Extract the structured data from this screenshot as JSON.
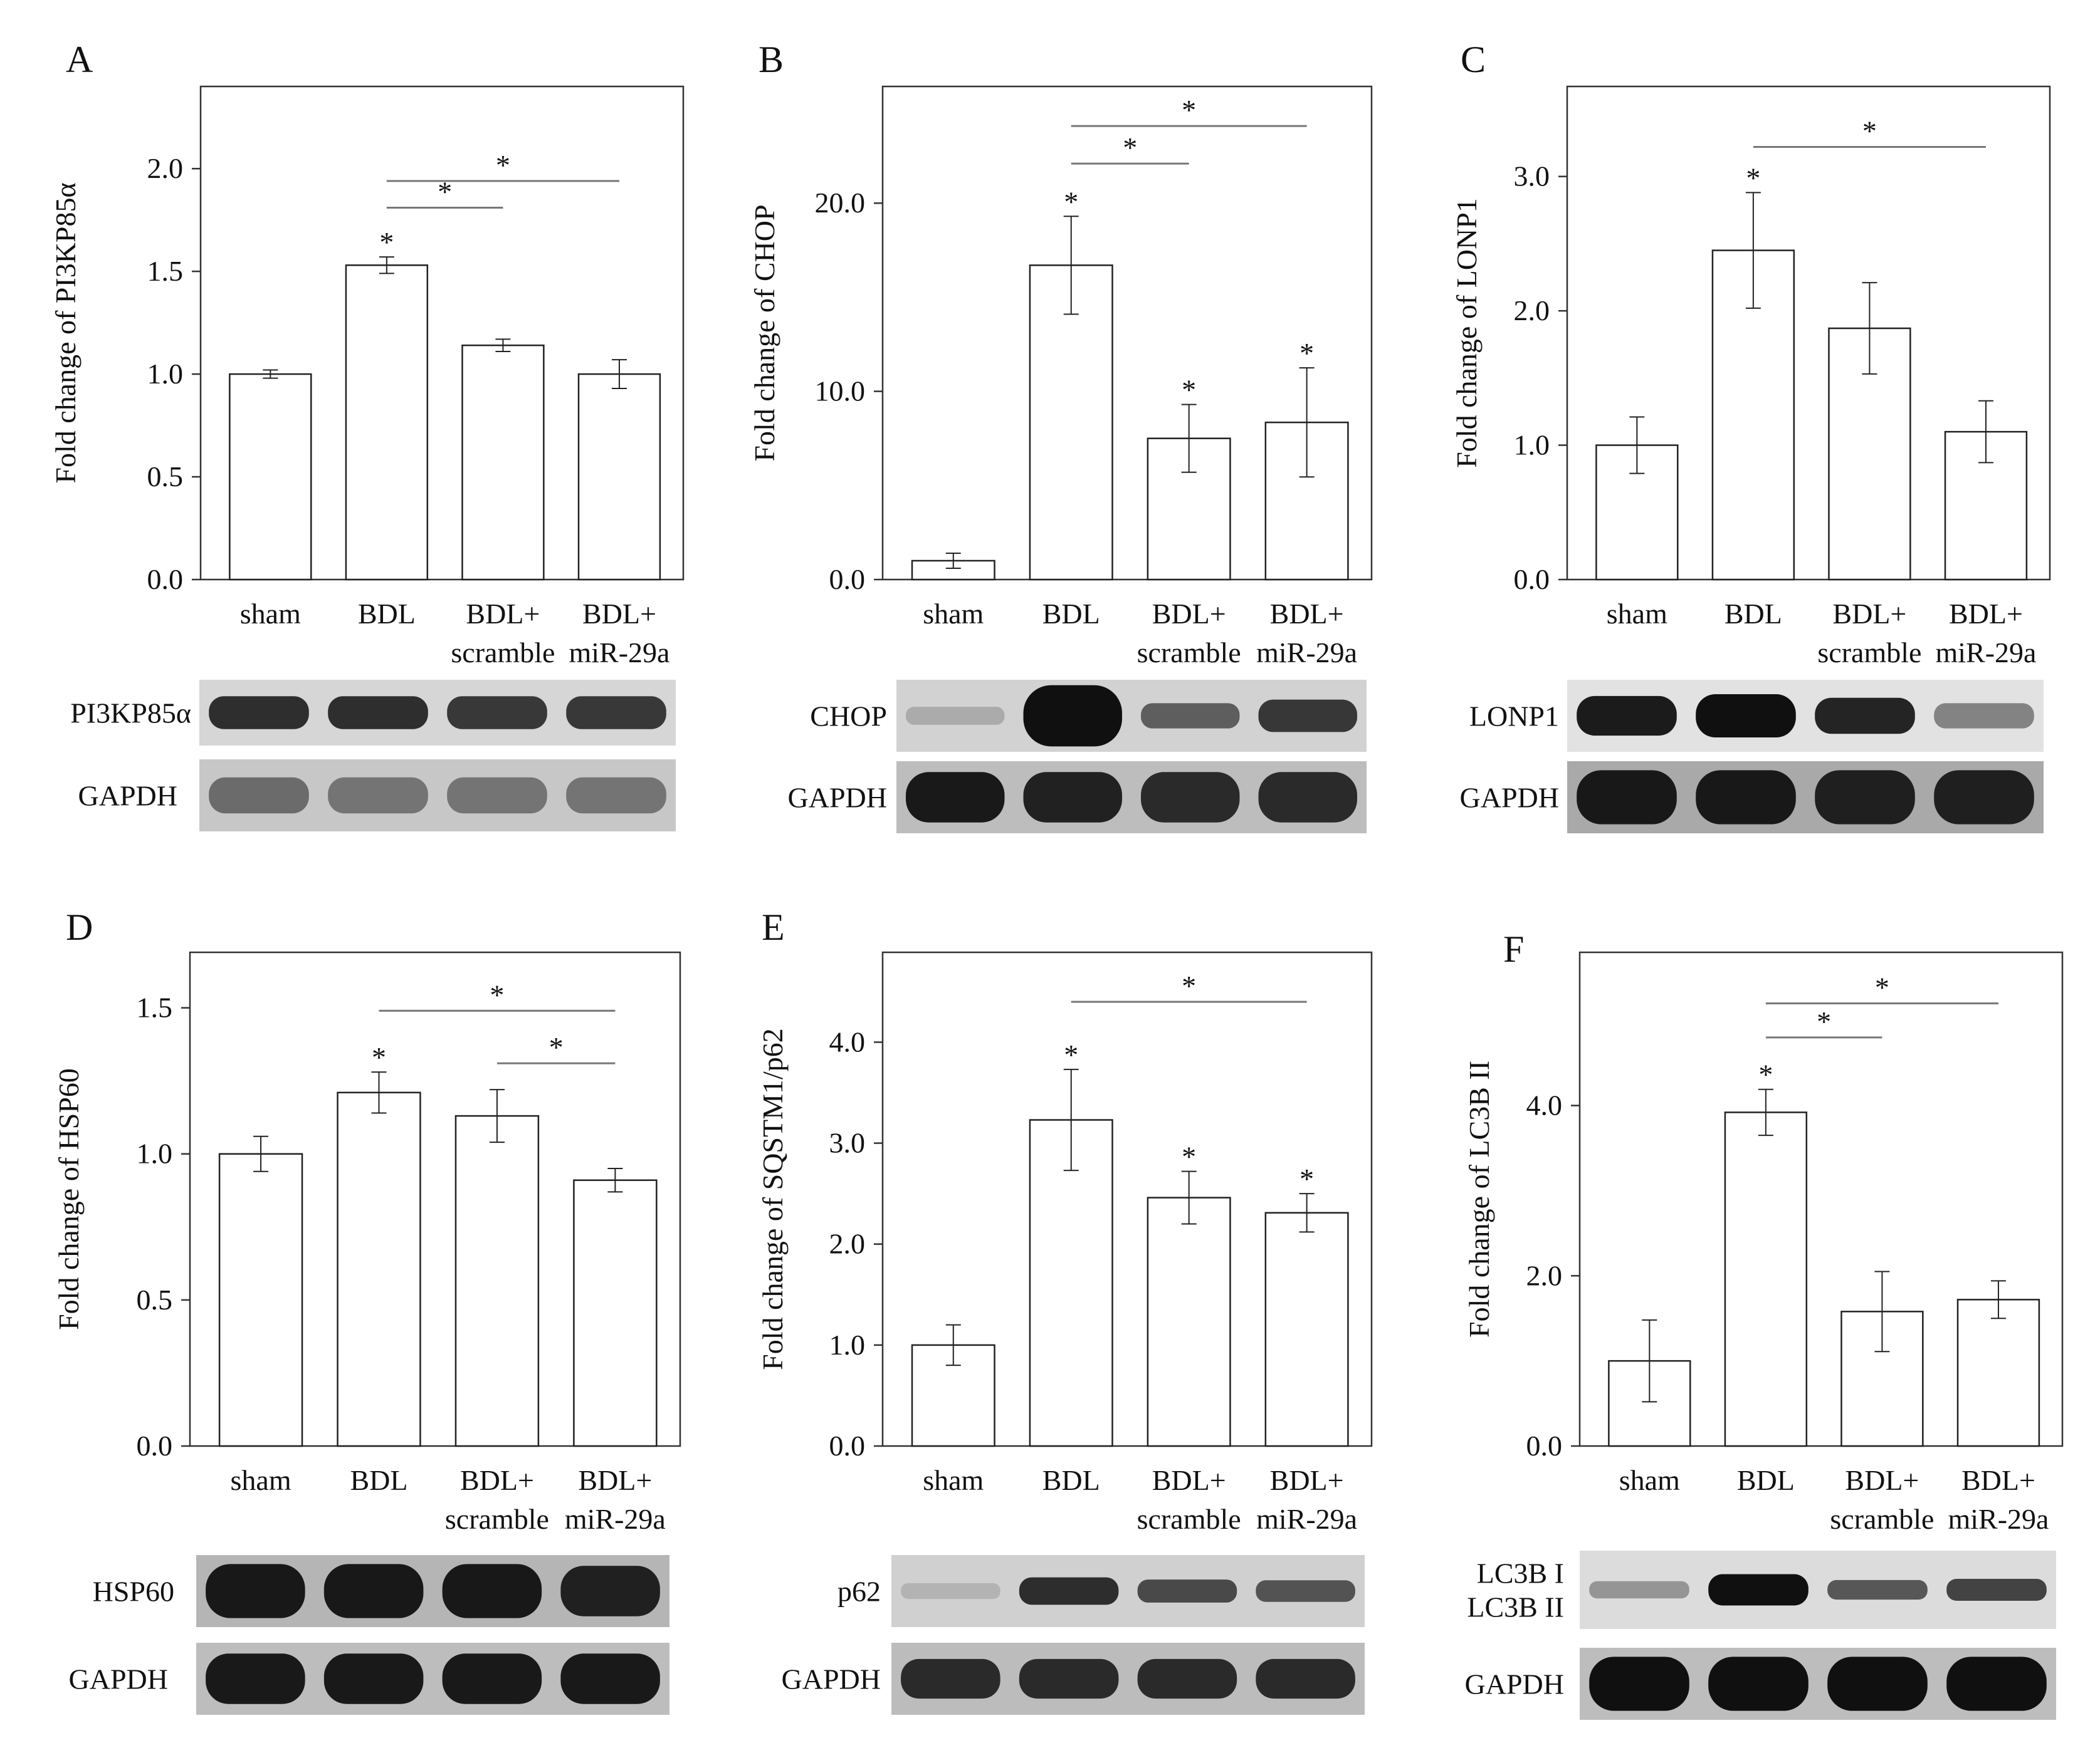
{
  "colors": {
    "axis": "#333333",
    "bar_fill": "#ffffff",
    "bar_stroke": "#222222",
    "sig_line": "#777777",
    "blot_bg": "#d8d8d8",
    "band": "#101010"
  },
  "x_tick_lines": [
    [
      "sham"
    ],
    [
      "BDL"
    ],
    [
      "BDL+",
      "scramble"
    ],
    [
      "BDL+",
      "miR-29a"
    ]
  ],
  "chart_data": [
    {
      "type": "bar",
      "panel_label": "A",
      "ylabel": "Fold change of  PI3KP85α",
      "categories": [
        "sham",
        "BDL",
        "BDL+ scramble",
        "BDL+ miR-29a"
      ],
      "values": [
        1.0,
        1.53,
        1.14,
        1.0
      ],
      "errors": [
        0.02,
        0.04,
        0.03,
        0.07
      ],
      "ylim": [
        0,
        2.4
      ],
      "yticks": [
        0,
        0.5,
        1.0,
        1.5,
        2.0
      ],
      "ytick_labels": [
        "0.0",
        "0.5",
        "1.0",
        "1.5",
        "2.0"
      ],
      "bar_asterisks": [
        1
      ],
      "brackets": [
        {
          "from": 1,
          "to": 2,
          "y": 1.81,
          "label": "*"
        },
        {
          "from": 1,
          "to": 3,
          "y": 1.94,
          "label": "*"
        }
      ],
      "blots": [
        {
          "label": "PI3KP85α",
          "intensity": [
            0.85,
            0.85,
            0.8,
            0.8
          ],
          "thickness": [
            0.5,
            0.5,
            0.5,
            0.5
          ],
          "bg": "#d6d6d6"
        },
        {
          "label": "GAPDH",
          "intensity": [
            0.5,
            0.45,
            0.45,
            0.45
          ],
          "thickness": [
            0.5,
            0.5,
            0.5,
            0.5
          ],
          "bg": "#c7c7c7"
        }
      ]
    },
    {
      "type": "bar",
      "panel_label": "B",
      "ylabel": "Fold change of  CHOP",
      "categories": [
        "sham",
        "BDL",
        "BDL+ scramble",
        "BDL+ miR-29a"
      ],
      "values": [
        1.0,
        16.7,
        7.5,
        8.35
      ],
      "errors": [
        0.4,
        2.6,
        1.8,
        2.9
      ],
      "ylim": [
        0,
        26.2
      ],
      "yticks": [
        0,
        10,
        20
      ],
      "ytick_labels": [
        "0.0",
        "10.0",
        "20.0"
      ],
      "bar_asterisks": [
        1,
        2,
        3
      ],
      "brackets": [
        {
          "from": 1,
          "to": 2,
          "y": 22.1,
          "label": "*"
        },
        {
          "from": 1,
          "to": 3,
          "y": 24.1,
          "label": "*"
        }
      ],
      "blots": [
        {
          "label": "CHOP",
          "intensity": [
            0.2,
            1.0,
            0.6,
            0.8
          ],
          "thickness": [
            0.25,
            0.85,
            0.35,
            0.45
          ],
          "bg": "#d2d2d2"
        },
        {
          "label": "GAPDH",
          "intensity": [
            0.95,
            0.9,
            0.85,
            0.85
          ],
          "thickness": [
            0.7,
            0.7,
            0.7,
            0.7
          ],
          "bg": "#bdbdbd"
        }
      ]
    },
    {
      "type": "bar",
      "panel_label": "C",
      "ylabel": "Fold change of LONP1",
      "categories": [
        "sham",
        "BDL",
        "BDL+ scramble",
        "BDL+ miR-29a"
      ],
      "values": [
        1.0,
        2.45,
        1.87,
        1.1
      ],
      "errors": [
        0.21,
        0.43,
        0.34,
        0.23
      ],
      "ylim": [
        0,
        3.67
      ],
      "yticks": [
        0,
        1.0,
        2.0,
        3.0
      ],
      "ytick_labels": [
        "0.0",
        "1.0",
        "2.0",
        "3.0"
      ],
      "bar_asterisks": [
        1
      ],
      "brackets": [
        {
          "from": 1,
          "to": 3,
          "y": 3.22,
          "label": "*"
        }
      ],
      "blots": [
        {
          "label": "LONP1",
          "intensity": [
            0.95,
            1.0,
            0.9,
            0.45
          ],
          "thickness": [
            0.55,
            0.6,
            0.5,
            0.35
          ],
          "bg": "#e2e2e2"
        },
        {
          "label": "GAPDH",
          "intensity": [
            0.95,
            0.95,
            0.9,
            0.9
          ],
          "thickness": [
            0.75,
            0.75,
            0.75,
            0.75
          ],
          "bg": "#a9a9a9"
        }
      ]
    },
    {
      "type": "bar",
      "panel_label": "D",
      "ylabel": "Fold change of HSP60",
      "categories": [
        "sham",
        "BDL",
        "BDL+ scramble",
        "BDL+ miR-29a"
      ],
      "values": [
        1.0,
        1.21,
        1.13,
        0.91
      ],
      "errors": [
        0.06,
        0.07,
        0.09,
        0.04
      ],
      "ylim": [
        0,
        1.69
      ],
      "yticks": [
        0,
        0.5,
        1.0,
        1.5
      ],
      "ytick_labels": [
        "0.0",
        "0.5",
        "1.0",
        "1.5"
      ],
      "bar_asterisks": [
        1
      ],
      "brackets": [
        {
          "from": 1,
          "to": 3,
          "y": 1.49,
          "label": "*"
        },
        {
          "from": 2,
          "to": 3,
          "y": 1.31,
          "label": "*"
        }
      ],
      "blots": [
        {
          "label": "HSP60",
          "intensity": [
            0.95,
            0.95,
            0.95,
            0.9
          ],
          "thickness": [
            0.75,
            0.75,
            0.75,
            0.7
          ],
          "bg": "#b5b5b5"
        },
        {
          "label": "GAPDH",
          "intensity": [
            0.95,
            0.95,
            0.95,
            0.95
          ],
          "thickness": [
            0.7,
            0.7,
            0.7,
            0.7
          ],
          "bg": "#bdbdbd"
        }
      ]
    },
    {
      "type": "bar",
      "panel_label": "E",
      "ylabel": "Fold change of SQSTM1/p62",
      "categories": [
        "sham",
        "BDL",
        "BDL+ scramble",
        "BDL+ miR-29a"
      ],
      "values": [
        1.0,
        3.23,
        2.46,
        2.31
      ],
      "errors": [
        0.2,
        0.5,
        0.26,
        0.19
      ],
      "ylim": [
        0,
        4.89
      ],
      "yticks": [
        0,
        1.0,
        2.0,
        3.0,
        4.0
      ],
      "ytick_labels": [
        "0.0",
        "1.0",
        "2.0",
        "3.0",
        "4.0"
      ],
      "bar_asterisks": [
        1,
        2,
        3
      ],
      "brackets": [
        {
          "from": 1,
          "to": 3,
          "y": 4.4,
          "label": "*"
        }
      ],
      "blots": [
        {
          "label": "p62",
          "intensity": [
            0.15,
            0.85,
            0.7,
            0.65
          ],
          "thickness": [
            0.22,
            0.38,
            0.32,
            0.3
          ],
          "bg": "#d0d0d0"
        },
        {
          "label": "GAPDH",
          "intensity": [
            0.85,
            0.85,
            0.85,
            0.85
          ],
          "thickness": [
            0.55,
            0.55,
            0.55,
            0.55
          ],
          "bg": "#bcbcbc"
        }
      ]
    },
    {
      "type": "bar",
      "panel_label": "F",
      "ylabel": "Fold change of LC3B II",
      "categories": [
        "sham",
        "BDL",
        "BDL+ scramble",
        "BDL+ miR-29a"
      ],
      "values": [
        1.0,
        3.92,
        1.58,
        1.72
      ],
      "errors": [
        0.48,
        0.27,
        0.47,
        0.22
      ],
      "ylim": [
        0,
        5.8
      ],
      "yticks": [
        0,
        2.0,
        4.0
      ],
      "ytick_labels": [
        "0.0",
        "2.0",
        "4.0"
      ],
      "bar_asterisks": [
        1
      ],
      "brackets": [
        {
          "from": 1,
          "to": 2,
          "y": 4.8,
          "label": "*"
        },
        {
          "from": 1,
          "to": 3,
          "y": 5.2,
          "label": "*"
        }
      ],
      "blots": [
        {
          "label": "LC3B I\nLC3B II",
          "intensity": [
            0.35,
            1.0,
            0.65,
            0.75
          ],
          "thickness": [
            0.22,
            0.4,
            0.25,
            0.28
          ],
          "bg": "#dcdcdc"
        },
        {
          "label": "GAPDH",
          "intensity": [
            1.0,
            1.0,
            1.0,
            1.0
          ],
          "thickness": [
            0.75,
            0.75,
            0.75,
            0.75
          ],
          "bg": "#bdbdbd"
        }
      ]
    }
  ]
}
